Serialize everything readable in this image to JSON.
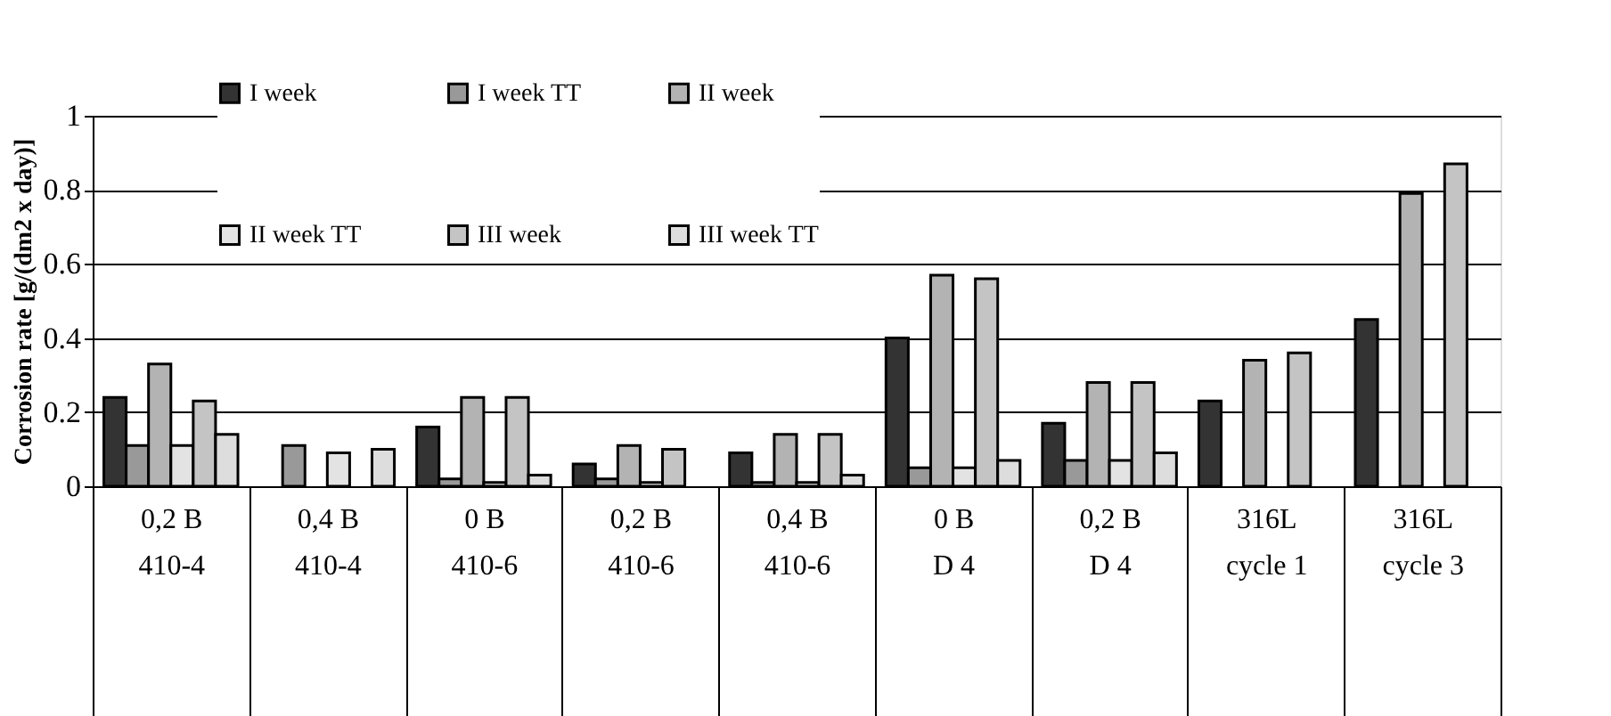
{
  "chart_data": {
    "type": "bar",
    "ylabel": "Corrosion rate [g/(dm2 x day)]",
    "categories": [
      "0,2 B\n\n410-4",
      "0,4 B\n\n410-4",
      "0 B\n\n410-6",
      "0,2 B\n\n410-6",
      "0,4 B\n\n410-6",
      "0 B\n\nD 4",
      "0,2 B\n\nD 4",
      "316L\ncycle 1",
      "316L\ncycle 3"
    ],
    "series": [
      {
        "name": "I week",
        "color": "#333333",
        "values": [
          0.24,
          null,
          0.16,
          0.06,
          0.09,
          0.4,
          0.17,
          0.23,
          0.45
        ]
      },
      {
        "name": "I week TT",
        "color": "#999999",
        "values": [
          0.11,
          0.11,
          0.02,
          0.02,
          0.01,
          0.05,
          0.07,
          null,
          null
        ]
      },
      {
        "name": "II week",
        "color": "#b3b3b3",
        "values": [
          0.33,
          null,
          0.24,
          0.11,
          0.14,
          0.57,
          0.28,
          0.34,
          0.79
        ]
      },
      {
        "name": "II week TT",
        "color": "#e3e3e3",
        "values": [
          0.11,
          0.09,
          0.01,
          0.01,
          0.01,
          0.05,
          0.07,
          null,
          null
        ]
      },
      {
        "name": "III week",
        "color": "#c4c4c4",
        "values": [
          0.23,
          null,
          0.24,
          0.1,
          0.14,
          0.56,
          0.28,
          0.36,
          0.87
        ]
      },
      {
        "name": "III week TT",
        "color": "#dddddd",
        "values": [
          0.14,
          0.1,
          0.03,
          null,
          0.03,
          0.07,
          0.09,
          null,
          null
        ]
      }
    ],
    "ylim": [
      0,
      1
    ],
    "yticks": [
      0,
      0.2,
      0.4,
      0.6,
      0.8,
      1
    ],
    "grid": "y",
    "legend": "top left"
  }
}
